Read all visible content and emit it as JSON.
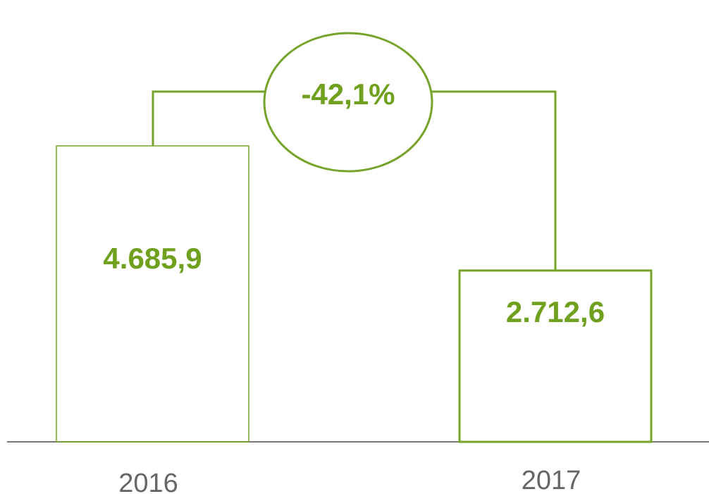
{
  "chart_data": {
    "type": "bar",
    "categories": [
      "2016",
      "2017"
    ],
    "values": [
      4685.9,
      2712.6
    ],
    "value_labels": [
      "4.685,9",
      "2.712,6"
    ],
    "annotation": "-42,1%",
    "color": "#76a32a"
  }
}
